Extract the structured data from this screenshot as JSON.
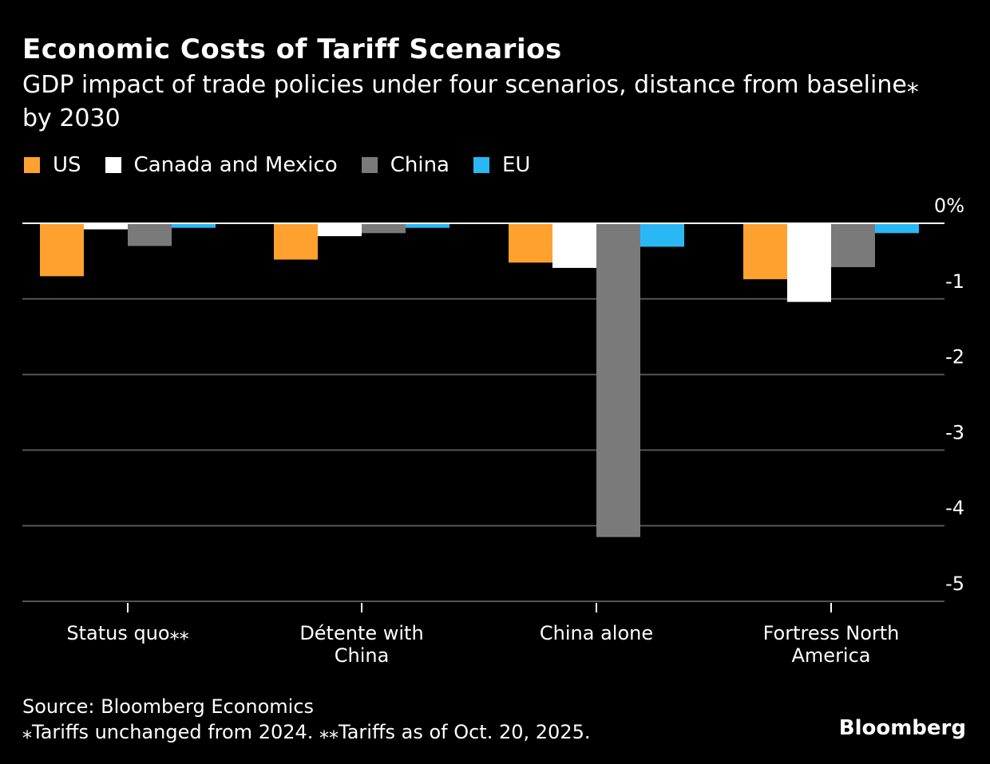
{
  "title": "Economic Costs of Tariff Scenarios",
  "subtitle": "GDP impact of trade policies under four scenarios, distance from baseline⁎ by 2030",
  "source": "Source: Bloomberg Economics",
  "footnote": "⁎Tariffs unchanged from 2024. ⁎⁎Tariffs as of Oct. 20, 2025.",
  "logo": "Bloomberg",
  "chart_data": {
    "type": "bar",
    "categories": [
      "Status quo⁎⁎",
      "Détente with China",
      "China alone",
      "Fortress North America"
    ],
    "series": [
      {
        "name": "US",
        "color": "#ffa12e",
        "values": [
          -0.7,
          -0.48,
          -0.52,
          -0.74
        ]
      },
      {
        "name": "Canada and Mexico",
        "color": "#ffffff",
        "values": [
          -0.08,
          -0.17,
          -0.59,
          -1.04
        ]
      },
      {
        "name": "China",
        "color": "#7a7a7a",
        "values": [
          -0.3,
          -0.13,
          -4.15,
          -0.58
        ]
      },
      {
        "name": "EU",
        "color": "#2ab8f5",
        "values": [
          -0.06,
          -0.06,
          -0.31,
          -0.13
        ]
      }
    ],
    "yticks": [
      "0%",
      "-1",
      "-2",
      "-3",
      "-4",
      "-5"
    ],
    "ylim": [
      -5.2,
      0
    ],
    "grid": true,
    "legend": "top-left"
  }
}
